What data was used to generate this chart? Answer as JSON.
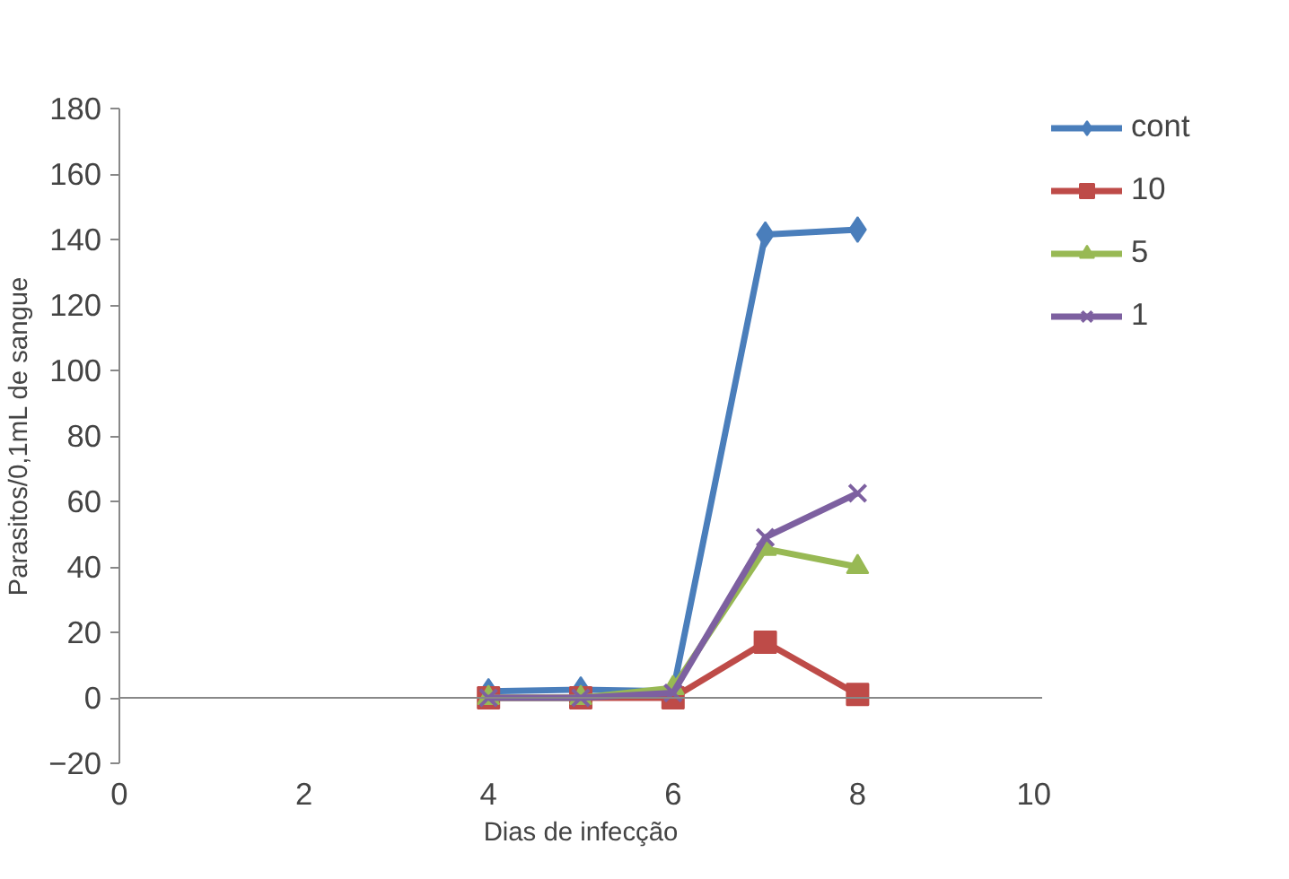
{
  "chart_data": {
    "type": "line",
    "xlabel": "Dias de infecção",
    "ylabel": "Parasitos/0,1mL de sangue",
    "xlim": [
      0,
      10
    ],
    "xticks": [
      0,
      2,
      4,
      6,
      8,
      10
    ],
    "ylim": [
      -20,
      180
    ],
    "yticks": [
      -20,
      0,
      20,
      40,
      60,
      80,
      100,
      120,
      140,
      160,
      180
    ],
    "grid": false,
    "legend": "right",
    "line_style": "solid",
    "x": [
      4,
      5,
      6,
      7,
      8
    ],
    "series": [
      {
        "name": "cont",
        "color": "#4a7ebb",
        "marker": "diamond",
        "values": [
          2,
          2.5,
          2,
          141.5,
          143
        ]
      },
      {
        "name": "10",
        "color": "#be4b48",
        "marker": "square",
        "values": [
          0,
          0,
          0,
          17,
          1
        ]
      },
      {
        "name": "5",
        "color": "#98b954",
        "marker": "triangle",
        "values": [
          0,
          0,
          3,
          45.5,
          40
        ]
      },
      {
        "name": "1",
        "color": "#7d60a0",
        "marker": "cross",
        "values": [
          0,
          0,
          1.5,
          49,
          62.5
        ]
      }
    ]
  }
}
